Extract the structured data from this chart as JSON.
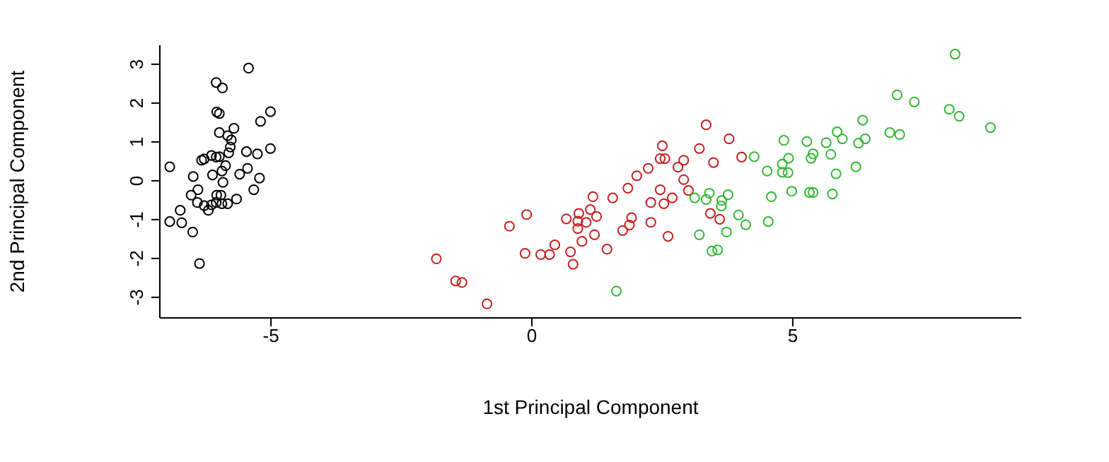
{
  "chart_data": {
    "type": "scatter",
    "xlabel": "1st Principal Component",
    "ylabel": "2nd Principal Component",
    "xlim": [
      -7.13,
      9.38
    ],
    "ylim": [
      -3.53,
      3.49
    ],
    "xticks": [
      -5,
      0,
      5
    ],
    "yticks": [
      -3,
      -2,
      -1,
      0,
      1,
      2,
      3
    ],
    "grid": false,
    "legend": false,
    "marker": "circle",
    "series": [
      {
        "color": "#000000",
        "x": [
          -5.43,
          -6.05,
          -5.93,
          -6.04,
          -5.99,
          -5.01,
          -5.2,
          -5.71,
          -5.99,
          -5.83,
          -5.76,
          -5.78,
          -5.81,
          -5.47,
          -5.26,
          -5.01,
          -6.33,
          -6.28,
          -6.14,
          -6.05,
          -5.99,
          -5.87,
          -5.94,
          -6.12,
          -6.49,
          -5.45,
          -5.6,
          -5.22,
          -5.92,
          -5.33,
          -6.4,
          -6.53,
          -6.04,
          -5.96,
          -5.66,
          -6.41,
          -6.28,
          -6.14,
          -6.05,
          -5.94,
          -5.83,
          -6.2,
          -6.74,
          -6.71,
          -6.5,
          -6.37,
          -6.94,
          -6.94
        ],
        "values": [
          2.9,
          2.53,
          2.39,
          1.77,
          1.73,
          1.78,
          1.53,
          1.35,
          1.24,
          1.16,
          1.05,
          0.87,
          0.72,
          0.75,
          0.69,
          0.83,
          0.53,
          0.56,
          0.65,
          0.61,
          0.62,
          0.39,
          0.25,
          0.15,
          0.11,
          0.32,
          0.17,
          0.07,
          -0.04,
          -0.23,
          -0.23,
          -0.37,
          -0.37,
          -0.37,
          -0.47,
          -0.56,
          -0.64,
          -0.62,
          -0.56,
          -0.59,
          -0.59,
          -0.76,
          -0.76,
          -1.08,
          -1.32,
          -2.13,
          0.36,
          -1.05
        ]
      },
      {
        "color": "#c42020",
        "x": [
          3.34,
          3.78,
          2.5,
          3.21,
          2.46,
          2.55,
          4.02,
          3.48,
          2.91,
          2.8,
          2.23,
          2.01,
          2.91,
          1.84,
          2.46,
          3.0,
          2.69,
          1.55,
          1.17,
          2.28,
          2.53,
          1.12,
          3.42,
          3.6,
          -0.1,
          -0.43,
          0.66,
          0.9,
          1.24,
          0.88,
          1.04,
          0.88,
          1.91,
          1.87,
          1.74,
          2.28,
          1.2,
          0.96,
          2.61,
          0.44,
          1.44,
          -0.13,
          0.17,
          0.34,
          0.74,
          0.79,
          -1.83,
          -1.46,
          -1.34,
          -0.86
        ],
        "values": [
          1.44,
          1.08,
          0.9,
          0.83,
          0.57,
          0.57,
          0.61,
          0.47,
          0.53,
          0.35,
          0.32,
          0.13,
          0.03,
          -0.19,
          -0.23,
          -0.25,
          -0.44,
          -0.44,
          -0.41,
          -0.56,
          -0.59,
          -0.74,
          -0.84,
          -0.99,
          -0.87,
          -1.17,
          -0.98,
          -0.84,
          -0.92,
          -1.04,
          -1.07,
          -1.23,
          -0.95,
          -1.14,
          -1.28,
          -1.07,
          -1.39,
          -1.56,
          -1.43,
          -1.65,
          -1.76,
          -1.87,
          -1.9,
          -1.9,
          -1.83,
          -2.15,
          -2.01,
          -2.58,
          -2.62,
          -3.17
        ]
      },
      {
        "color": "#33b833",
        "x": [
          8.11,
          7.0,
          7.33,
          8.0,
          8.19,
          8.79,
          6.34,
          5.85,
          6.86,
          7.05,
          5.95,
          6.39,
          6.26,
          5.64,
          5.27,
          4.83,
          4.26,
          4.92,
          4.8,
          5.39,
          5.35,
          5.73,
          4.51,
          4.8,
          4.91,
          6.21,
          5.83,
          3.4,
          3.12,
          3.34,
          3.64,
          3.76,
          3.63,
          4.59,
          4.98,
          5.32,
          5.39,
          5.76,
          3.96,
          4.1,
          4.53,
          3.73,
          3.21,
          3.45,
          3.56,
          1.62
        ],
        "values": [
          3.26,
          2.21,
          2.03,
          1.84,
          1.66,
          1.37,
          1.56,
          1.26,
          1.24,
          1.19,
          1.08,
          1.08,
          0.97,
          0.98,
          1.01,
          1.04,
          0.62,
          0.58,
          0.43,
          0.69,
          0.58,
          0.68,
          0.25,
          0.22,
          0.21,
          0.36,
          0.18,
          -0.32,
          -0.44,
          -0.48,
          -0.51,
          -0.36,
          -0.65,
          -0.41,
          -0.27,
          -0.3,
          -0.3,
          -0.34,
          -0.88,
          -1.13,
          -1.05,
          -1.32,
          -1.39,
          -1.81,
          -1.78,
          -2.84
        ]
      }
    ]
  }
}
